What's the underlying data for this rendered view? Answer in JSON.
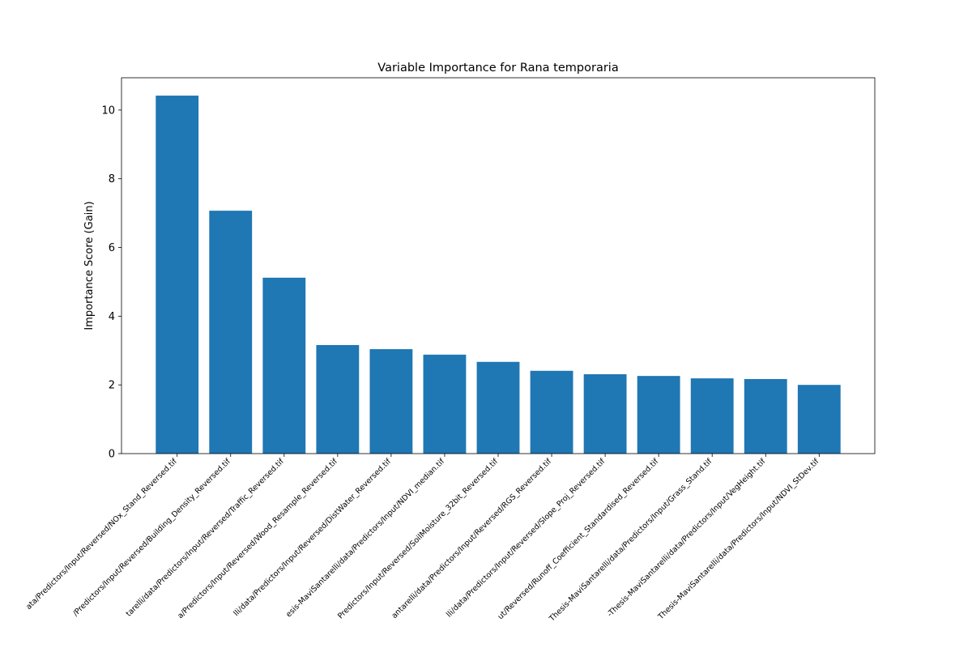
{
  "chart_data": {
    "type": "bar",
    "title": "Variable Importance for Rana temporaria",
    "y_label": "Importance Score (Gain)",
    "categories": [
      "ata/Predictors/Input/Reversed/NOx_Stand_Reversed.tif",
      "/Predictors/Input/Reversed/Building_Density_Reversed.tif",
      "tarelli/data/Predictors/Input/Reversed/Traffic_Reversed.tif",
      "a/Predictors/Input/Reversed/Wood_Resample_Reversed.tif",
      "lli/data/Predictors/Input/Reversed/DistWater_Reversed.tif",
      "esis-MaviSantarelli/data/Predictors/Input/NDVI_median.tif",
      "Predictors/Input/Reversed/SoilMoisture_32bit_Reversed.tif",
      "antarelli/data/Predictors/Input/Reversed/RGS_Reversed.tif",
      "lli/data/Predictors/Input/Reversed/Slope_Proj_Reversed.tif",
      "ut/Reversed/Runoff_Coefficient_Standardised_Reversed.tif",
      "Thesis-MaviSantarelli/data/Predictors/Input/Grass_Stand.tif",
      "-Thesis-MaviSantarelli/data/Predictors/Input/VegHeight.tif",
      "Thesis-MaviSantarelli/data/Predictors/Input/NDVI_StDev.tif"
    ],
    "values": [
      10.42,
      7.07,
      5.12,
      3.16,
      3.04,
      2.88,
      2.67,
      2.41,
      2.31,
      2.26,
      2.19,
      2.17,
      2.0
    ],
    "color": "#1f77b4",
    "ylim": [
      0,
      10.94
    ],
    "yticks": [
      0,
      2,
      4,
      6,
      8,
      10
    ],
    "grid": false
  }
}
